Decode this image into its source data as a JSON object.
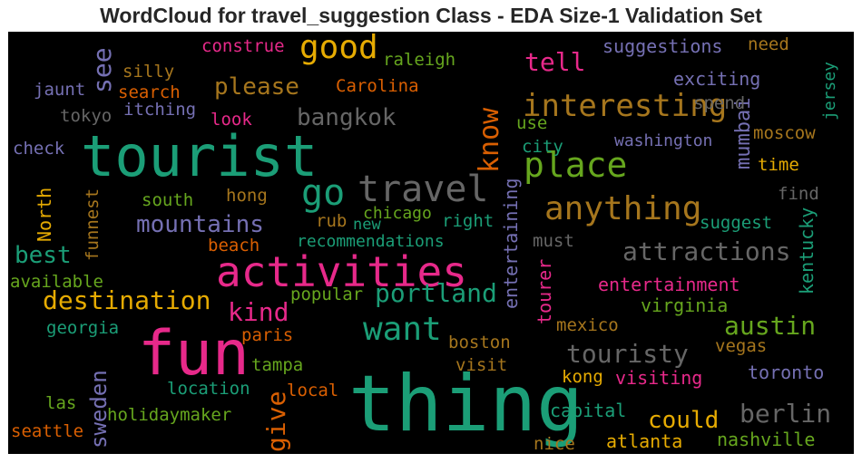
{
  "chart_data": {
    "type": "wordcloud",
    "title": "WordCloud for travel_suggestion Class - EDA Size-1 Validation Set",
    "background": "#000000",
    "palette": [
      "#1b9e77",
      "#d95f02",
      "#7570b3",
      "#e7298a",
      "#66a61e",
      "#e6ab02",
      "#a6761d",
      "#666666"
    ],
    "words": [
      {
        "text": "thing",
        "color": "#1b9e77",
        "rank": 1
      },
      {
        "text": "tourist",
        "color": "#1b9e77",
        "rank": 2
      },
      {
        "text": "fun",
        "color": "#e7298a",
        "rank": 3
      },
      {
        "text": "activities",
        "color": "#e7298a",
        "rank": 4
      },
      {
        "text": "travel",
        "color": "#666666",
        "rank": 5
      },
      {
        "text": "go",
        "color": "#1b9e77",
        "rank": 6
      },
      {
        "text": "place",
        "color": "#66a61e",
        "rank": 7
      },
      {
        "text": "good",
        "color": "#e6ab02",
        "rank": 8
      },
      {
        "text": "interesting",
        "color": "#a6761d",
        "rank": 9
      },
      {
        "text": "anything",
        "color": "#a6761d",
        "rank": 10
      },
      {
        "text": "want",
        "color": "#1b9e77",
        "rank": 11
      },
      {
        "text": "know",
        "color": "#d95f02",
        "rank": 12
      },
      {
        "text": "portland",
        "color": "#1b9e77",
        "rank": 13
      },
      {
        "text": "attractions",
        "color": "#666666",
        "rank": 14
      },
      {
        "text": "destination",
        "color": "#e6ab02",
        "rank": 15
      },
      {
        "text": "touristy",
        "color": "#666666",
        "rank": 16
      },
      {
        "text": "mountains",
        "color": "#7570b3",
        "rank": 17
      },
      {
        "text": "austin",
        "color": "#66a61e",
        "rank": 18
      },
      {
        "text": "berlin",
        "color": "#666666",
        "rank": 19
      },
      {
        "text": "could",
        "color": "#e6ab02",
        "rank": 20
      },
      {
        "text": "bangkok",
        "color": "#666666",
        "rank": 21
      },
      {
        "text": "please",
        "color": "#a6761d",
        "rank": 22
      },
      {
        "text": "see",
        "color": "#7570b3",
        "rank": 23
      },
      {
        "text": "kind",
        "color": "#e7298a",
        "rank": 24
      },
      {
        "text": "give",
        "color": "#d95f02",
        "rank": 25
      },
      {
        "text": "sweden",
        "color": "#7570b3",
        "rank": 26
      },
      {
        "text": "best",
        "color": "#1b9e77",
        "rank": 27
      },
      {
        "text": "mumbai",
        "color": "#7570b3",
        "rank": 28
      },
      {
        "text": "tell",
        "color": "#e7298a",
        "rank": 29
      },
      {
        "text": "visiting",
        "color": "#e7298a",
        "rank": 30
      },
      {
        "text": "entertainment",
        "color": "#e7298a",
        "rank": 31
      },
      {
        "text": "washington",
        "color": "#7570b3",
        "rank": 32
      },
      {
        "text": "suggestions",
        "color": "#7570b3",
        "rank": 33
      },
      {
        "text": "exciting",
        "color": "#7570b3",
        "rank": 34
      },
      {
        "text": "recommendations",
        "color": "#1b9e77",
        "rank": 35
      },
      {
        "text": "holidaymaker",
        "color": "#66a61e",
        "rank": 36
      },
      {
        "text": "entertaining",
        "color": "#7570b3",
        "rank": 37
      },
      {
        "text": "virginia",
        "color": "#66a61e",
        "rank": 38
      },
      {
        "text": "toronto",
        "color": "#7570b3",
        "rank": 39
      },
      {
        "text": "nashville",
        "color": "#66a61e",
        "rank": 40
      },
      {
        "text": "atlanta",
        "color": "#e6ab02",
        "rank": 41
      },
      {
        "text": "capital",
        "color": "#1b9e77",
        "rank": 42
      },
      {
        "text": "kentucky",
        "color": "#1b9e77",
        "rank": 43
      },
      {
        "text": "jersey",
        "color": "#1b9e77",
        "rank": 44
      },
      {
        "text": "construe",
        "color": "#e7298a",
        "rank": 45
      },
      {
        "text": "raleigh",
        "color": "#66a61e",
        "rank": 46
      },
      {
        "text": "Carolina",
        "color": "#d95f02",
        "rank": 47
      },
      {
        "text": "silly",
        "color": "#a6761d",
        "rank": 48
      },
      {
        "text": "search",
        "color": "#d95f02",
        "rank": 49
      },
      {
        "text": "jaunt",
        "color": "#7570b3",
        "rank": 50
      },
      {
        "text": "itching",
        "color": "#7570b3",
        "rank": 51
      },
      {
        "text": "tokyo",
        "color": "#666666",
        "rank": 52
      },
      {
        "text": "look",
        "color": "#e7298a",
        "rank": 53
      },
      {
        "text": "check",
        "color": "#7570b3",
        "rank": 54
      },
      {
        "text": "spend",
        "color": "#666666",
        "rank": 55
      },
      {
        "text": "need",
        "color": "#a6761d",
        "rank": 56
      },
      {
        "text": "use",
        "color": "#66a61e",
        "rank": 57
      },
      {
        "text": "city",
        "color": "#1b9e77",
        "rank": 58
      },
      {
        "text": "moscow",
        "color": "#a6761d",
        "rank": 59
      },
      {
        "text": "time",
        "color": "#e6ab02",
        "rank": 60
      },
      {
        "text": "find",
        "color": "#666666",
        "rank": 61
      },
      {
        "text": "suggest",
        "color": "#1b9e77",
        "rank": 62
      },
      {
        "text": "must",
        "color": "#666666",
        "rank": 63
      },
      {
        "text": "south",
        "color": "#66a61e",
        "rank": 64
      },
      {
        "text": "hong",
        "color": "#a6761d",
        "rank": 65
      },
      {
        "text": "North",
        "color": "#e6ab02",
        "rank": 66
      },
      {
        "text": "funnest",
        "color": "#a6761d",
        "rank": 67
      },
      {
        "text": "chicago",
        "color": "#66a61e",
        "rank": 68
      },
      {
        "text": "new",
        "color": "#1b9e77",
        "rank": 69
      },
      {
        "text": "right",
        "color": "#1b9e77",
        "rank": 70
      },
      {
        "text": "rub",
        "color": "#a6761d",
        "rank": 71
      },
      {
        "text": "beach",
        "color": "#d95f02",
        "rank": 72
      },
      {
        "text": "available",
        "color": "#66a61e",
        "rank": 73
      },
      {
        "text": "popular",
        "color": "#66a61e",
        "rank": 74
      },
      {
        "text": "georgia",
        "color": "#1b9e77",
        "rank": 75
      },
      {
        "text": "paris",
        "color": "#d95f02",
        "rank": 76
      },
      {
        "text": "mexico",
        "color": "#a6761d",
        "rank": 77
      },
      {
        "text": "tourer",
        "color": "#e7298a",
        "rank": 78
      },
      {
        "text": "boston",
        "color": "#a6761d",
        "rank": 79
      },
      {
        "text": "vegas",
        "color": "#a6761d",
        "rank": 80
      },
      {
        "text": "tampa",
        "color": "#66a61e",
        "rank": 81
      },
      {
        "text": "visit",
        "color": "#a6761d",
        "rank": 82
      },
      {
        "text": "location",
        "color": "#1b9e77",
        "rank": 83
      },
      {
        "text": "local",
        "color": "#d95f02",
        "rank": 84
      },
      {
        "text": "kong",
        "color": "#e6ab02",
        "rank": 85
      },
      {
        "text": "las",
        "color": "#66a61e",
        "rank": 86
      },
      {
        "text": "seattle",
        "color": "#d95f02",
        "rank": 87
      },
      {
        "text": "nice",
        "color": "#a6761d",
        "rank": 88
      }
    ]
  }
}
